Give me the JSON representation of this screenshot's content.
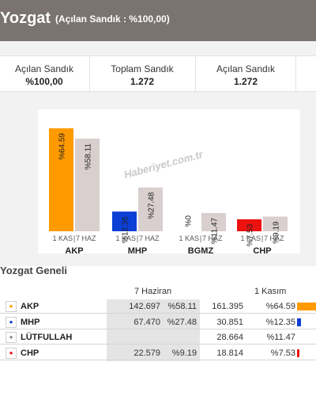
{
  "header": {
    "title": "Yozgat",
    "subtitle": "(Açılan Sandık : %100,00)"
  },
  "stats": [
    {
      "label": "Açılan Sandık",
      "value": "%100,00"
    },
    {
      "label": "Toplam Sandık",
      "value": "1.272"
    },
    {
      "label": "Açılan Sandık",
      "value": "1.272"
    }
  ],
  "watermark": "Haberiyet.com.tr",
  "chart_data": {
    "type": "bar",
    "categories": [
      "AKP",
      "MHP",
      "BGMZ",
      "CHP"
    ],
    "series": [
      {
        "name": "1 KAS",
        "values": [
          64.59,
          12.35,
          0,
          7.53
        ],
        "labels": [
          "%64.59",
          "%12.35",
          "",
          "%7.53"
        ]
      },
      {
        "name": "7 HAZ",
        "values": [
          58.11,
          27.48,
          11.47,
          9.19
        ],
        "labels": [
          "%58.11",
          "%27.48",
          "%11.47",
          "%9.19"
        ]
      }
    ],
    "bgmz_nov_label": "%0",
    "bar_colors": {
      "AKP": "#ff9a00",
      "MHP": "#0b3fd6",
      "BGMZ": "#ffffff",
      "CHP": "#ee1111"
    },
    "jun_color": "#d9cfcf",
    "ylim": [
      0,
      70
    ]
  },
  "section": {
    "title": "Yozgat Geneli"
  },
  "table": {
    "col_jun": "7 Haziran",
    "col_nov": "1 Kasım",
    "rows": [
      {
        "name": "AKP",
        "jun_votes": "142.697",
        "jun_pct": "%58.11",
        "nov_votes": "161.395",
        "nov_pct": "%64.59",
        "nov_value": 64.59,
        "color": "#ff9a00",
        "logo": "ampul"
      },
      {
        "name": "MHP",
        "jun_votes": "67.470",
        "jun_pct": "%27.48",
        "nov_votes": "30.851",
        "nov_pct": "%12.35",
        "nov_value": 12.35,
        "color": "#0b3fd6",
        "logo": "hilal"
      },
      {
        "name": "LÜTFULLAH",
        "jun_votes": "",
        "jun_pct": "",
        "nov_votes": "28.664",
        "nov_pct": "%11.47",
        "nov_value": 11.47,
        "color": "#ffffff",
        "logo": "kişi"
      },
      {
        "name": "CHP",
        "jun_votes": "22.579",
        "jun_pct": "%9.19",
        "nov_votes": "18.814",
        "nov_pct": "%7.53",
        "nov_value": 7.53,
        "color": "#ee1111",
        "logo": "chp"
      }
    ]
  }
}
